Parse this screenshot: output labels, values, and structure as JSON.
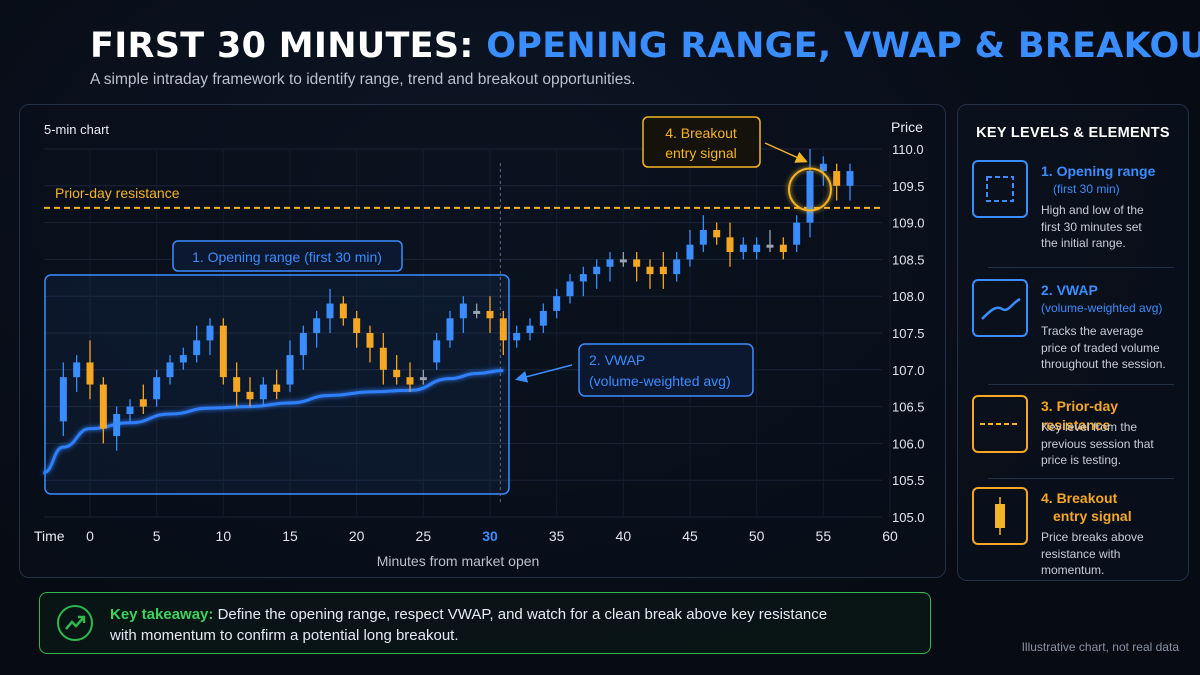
{
  "title": {
    "part1": "FIRST 30 MINUTES:",
    "part2": "OPENING RANGE, VWAP & BREAKOUT"
  },
  "subtitle": "A simple intraday framework to identify range, trend and breakout opportunities.",
  "colors": {
    "bull": "#3a8dff",
    "bear": "#f5a623",
    "neutral": "#9aa3b2",
    "vwap": "#2f80ff",
    "resistance": "#f5b423",
    "takeaway": "#2fb84f"
  },
  "chart": {
    "label": "5-min chart",
    "price_label": "Price",
    "time_label": "Time",
    "xlabel": "Minutes from market open",
    "resistance_label": "Prior-day resistance",
    "callouts": {
      "opening_range": "1. Opening range (first 30 min)",
      "vwap_line1": "2. VWAP",
      "vwap_line2": "(volume-weighted avg)",
      "breakout_line1": "4. Breakout",
      "breakout_line2": "entry signal"
    }
  },
  "chart_data": {
    "type": "candlestick",
    "xlabel": "Minutes from market open",
    "ylabel": "Price",
    "xlim": [
      0,
      60
    ],
    "ylim": [
      105.0,
      110.0
    ],
    "x_ticks": [
      "0",
      "5",
      "10",
      "15",
      "20",
      "25",
      "30",
      "35",
      "40",
      "45",
      "50",
      "55",
      "60"
    ],
    "y_ticks": [
      "105.0",
      "105.5",
      "106.0",
      "106.5",
      "107.0",
      "107.5",
      "108.0",
      "108.5",
      "109.0",
      "109.5",
      "110.0"
    ],
    "highlight_tick": "30",
    "resistance": 109.2,
    "opening_range_end": 31,
    "candles": [
      {
        "t": -2,
        "o": 106.3,
        "h": 107.1,
        "l": 106.1,
        "c": 106.9
      },
      {
        "t": -1,
        "o": 106.9,
        "h": 107.2,
        "l": 106.7,
        "c": 107.1
      },
      {
        "t": 0,
        "o": 107.1,
        "h": 107.4,
        "l": 106.6,
        "c": 106.8
      },
      {
        "t": 1,
        "o": 106.8,
        "h": 106.9,
        "l": 106.0,
        "c": 106.2
      },
      {
        "t": 2,
        "o": 106.1,
        "h": 106.5,
        "l": 105.9,
        "c": 106.4
      },
      {
        "t": 3,
        "o": 106.4,
        "h": 106.6,
        "l": 106.3,
        "c": 106.5
      },
      {
        "t": 4,
        "o": 106.6,
        "h": 106.8,
        "l": 106.4,
        "c": 106.5
      },
      {
        "t": 5,
        "o": 106.6,
        "h": 107.0,
        "l": 106.5,
        "c": 106.9
      },
      {
        "t": 6,
        "o": 106.9,
        "h": 107.2,
        "l": 106.8,
        "c": 107.1
      },
      {
        "t": 7,
        "o": 107.1,
        "h": 107.3,
        "l": 107.0,
        "c": 107.2
      },
      {
        "t": 8,
        "o": 107.2,
        "h": 107.6,
        "l": 107.1,
        "c": 107.4
      },
      {
        "t": 9,
        "o": 107.4,
        "h": 107.7,
        "l": 107.2,
        "c": 107.6
      },
      {
        "t": 10,
        "o": 107.6,
        "h": 107.7,
        "l": 106.8,
        "c": 106.9
      },
      {
        "t": 11,
        "o": 106.9,
        "h": 107.1,
        "l": 106.5,
        "c": 106.7
      },
      {
        "t": 12,
        "o": 106.7,
        "h": 106.9,
        "l": 106.5,
        "c": 106.6
      },
      {
        "t": 13,
        "o": 106.6,
        "h": 106.9,
        "l": 106.5,
        "c": 106.8
      },
      {
        "t": 14,
        "o": 106.8,
        "h": 107.0,
        "l": 106.6,
        "c": 106.7
      },
      {
        "t": 15,
        "o": 106.8,
        "h": 107.4,
        "l": 106.7,
        "c": 107.2
      },
      {
        "t": 16,
        "o": 107.2,
        "h": 107.6,
        "l": 107.0,
        "c": 107.5
      },
      {
        "t": 17,
        "o": 107.5,
        "h": 107.8,
        "l": 107.3,
        "c": 107.7
      },
      {
        "t": 18,
        "o": 107.7,
        "h": 108.1,
        "l": 107.5,
        "c": 107.9
      },
      {
        "t": 19,
        "o": 107.9,
        "h": 108.0,
        "l": 107.6,
        "c": 107.7
      },
      {
        "t": 20,
        "o": 107.7,
        "h": 107.8,
        "l": 107.3,
        "c": 107.5
      },
      {
        "t": 21,
        "o": 107.5,
        "h": 107.6,
        "l": 107.1,
        "c": 107.3
      },
      {
        "t": 22,
        "o": 107.3,
        "h": 107.5,
        "l": 106.8,
        "c": 107.0
      },
      {
        "t": 23,
        "o": 107.0,
        "h": 107.2,
        "l": 106.8,
        "c": 106.9
      },
      {
        "t": 24,
        "o": 106.9,
        "h": 107.1,
        "l": 106.7,
        "c": 106.8
      },
      {
        "t": 25,
        "o": 106.9,
        "h": 107.0,
        "l": 106.8,
        "c": 106.9
      },
      {
        "t": 26,
        "o": 107.1,
        "h": 107.5,
        "l": 107.0,
        "c": 107.4
      },
      {
        "t": 27,
        "o": 107.4,
        "h": 107.8,
        "l": 107.3,
        "c": 107.7
      },
      {
        "t": 28,
        "o": 107.7,
        "h": 108.0,
        "l": 107.5,
        "c": 107.9
      },
      {
        "t": 29,
        "o": 107.8,
        "h": 107.9,
        "l": 107.7,
        "c": 107.8
      },
      {
        "t": 30,
        "o": 107.8,
        "h": 108.0,
        "l": 107.5,
        "c": 107.7
      },
      {
        "t": 31,
        "o": 107.7,
        "h": 107.8,
        "l": 107.2,
        "c": 107.4
      },
      {
        "t": 32,
        "o": 107.4,
        "h": 107.6,
        "l": 107.3,
        "c": 107.5
      },
      {
        "t": 33,
        "o": 107.5,
        "h": 107.7,
        "l": 107.4,
        "c": 107.6
      },
      {
        "t": 34,
        "o": 107.6,
        "h": 107.9,
        "l": 107.5,
        "c": 107.8
      },
      {
        "t": 35,
        "o": 107.8,
        "h": 108.1,
        "l": 107.7,
        "c": 108.0
      },
      {
        "t": 36,
        "o": 108.0,
        "h": 108.3,
        "l": 107.9,
        "c": 108.2
      },
      {
        "t": 37,
        "o": 108.2,
        "h": 108.4,
        "l": 108.0,
        "c": 108.3
      },
      {
        "t": 38,
        "o": 108.3,
        "h": 108.5,
        "l": 108.1,
        "c": 108.4
      },
      {
        "t": 39,
        "o": 108.4,
        "h": 108.6,
        "l": 108.2,
        "c": 108.5
      },
      {
        "t": 40,
        "o": 108.5,
        "h": 108.6,
        "l": 108.4,
        "c": 108.5
      },
      {
        "t": 41,
        "o": 108.5,
        "h": 108.6,
        "l": 108.2,
        "c": 108.4
      },
      {
        "t": 42,
        "o": 108.4,
        "h": 108.5,
        "l": 108.1,
        "c": 108.3
      },
      {
        "t": 43,
        "o": 108.4,
        "h": 108.6,
        "l": 108.1,
        "c": 108.3
      },
      {
        "t": 44,
        "o": 108.3,
        "h": 108.6,
        "l": 108.2,
        "c": 108.5
      },
      {
        "t": 45,
        "o": 108.5,
        "h": 108.9,
        "l": 108.4,
        "c": 108.7
      },
      {
        "t": 46,
        "o": 108.7,
        "h": 109.1,
        "l": 108.6,
        "c": 108.9
      },
      {
        "t": 47,
        "o": 108.9,
        "h": 109.0,
        "l": 108.7,
        "c": 108.8
      },
      {
        "t": 48,
        "o": 108.8,
        "h": 109.0,
        "l": 108.4,
        "c": 108.6
      },
      {
        "t": 49,
        "o": 108.6,
        "h": 108.8,
        "l": 108.5,
        "c": 108.7
      },
      {
        "t": 50,
        "o": 108.6,
        "h": 108.8,
        "l": 108.5,
        "c": 108.7
      },
      {
        "t": 51,
        "o": 108.7,
        "h": 108.9,
        "l": 108.6,
        "c": 108.7
      },
      {
        "t": 52,
        "o": 108.7,
        "h": 108.8,
        "l": 108.5,
        "c": 108.6
      },
      {
        "t": 53,
        "o": 108.7,
        "h": 109.1,
        "l": 108.6,
        "c": 109.0
      },
      {
        "t": 54,
        "o": 109.0,
        "h": 110.0,
        "l": 108.8,
        "c": 109.7
      },
      {
        "t": 55,
        "o": 109.7,
        "h": 109.9,
        "l": 109.5,
        "c": 109.8
      },
      {
        "t": 56,
        "o": 109.7,
        "h": 109.8,
        "l": 109.3,
        "c": 109.5
      },
      {
        "t": 57,
        "o": 109.5,
        "h": 109.8,
        "l": 109.3,
        "c": 109.7
      }
    ],
    "vwap": [
      {
        "t": -3.5,
        "v": 105.6
      },
      {
        "t": -2,
        "v": 105.95
      },
      {
        "t": 0,
        "v": 106.2
      },
      {
        "t": 3,
        "v": 106.28
      },
      {
        "t": 6,
        "v": 106.4
      },
      {
        "t": 9,
        "v": 106.48
      },
      {
        "t": 12,
        "v": 106.5
      },
      {
        "t": 15,
        "v": 106.55
      },
      {
        "t": 18,
        "v": 106.65
      },
      {
        "t": 21,
        "v": 106.7
      },
      {
        "t": 24,
        "v": 106.72
      },
      {
        "t": 27,
        "v": 106.88
      },
      {
        "t": 29,
        "v": 106.95
      },
      {
        "t": 31,
        "v": 106.99
      }
    ]
  },
  "sidebar": {
    "title": "KEY LEVELS & ELEMENTS",
    "items": [
      {
        "head": "1. Opening range",
        "sub": "(first 30 min)",
        "desc1": "High and low of the",
        "desc2": "first 30 minutes set",
        "desc3": "the initial range."
      },
      {
        "head": "2. VWAP",
        "sub": "(volume-weighted avg)",
        "desc1": "Tracks the average",
        "desc2": "price of traded volume",
        "desc3": "throughout the session."
      },
      {
        "head": "3. Prior-day resistance",
        "desc1": "Key level from the",
        "desc2": "previous session that",
        "desc3": "price is testing."
      },
      {
        "head": "4. Breakout",
        "sub": "entry signal",
        "desc1": "Price breaks above",
        "desc2": "resistance with",
        "desc3": "momentum."
      }
    ]
  },
  "takeaway": {
    "label": "Key takeaway:",
    "text1": " Define the opening range, respect VWAP, and watch for a clean break above key resistance",
    "text2": "with momentum to confirm a potential long breakout."
  },
  "footnote": "Illustrative chart, not real data"
}
